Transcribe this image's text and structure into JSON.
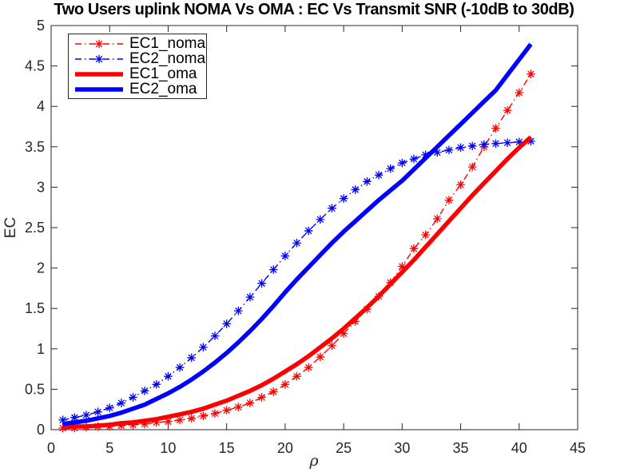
{
  "figure": {
    "background": "#ffffff",
    "axis_color": "#262626",
    "title_color": "#000000"
  },
  "chart_data": {
    "type": "line",
    "title": "Two Users uplink NOMA Vs OMA : EC Vs Transmit SNR (-10dB to 30dB)",
    "xlabel": "ρ",
    "ylabel": "EC",
    "xlim": [
      0,
      45
    ],
    "ylim": [
      0,
      5
    ],
    "xticks": [
      0,
      5,
      10,
      15,
      20,
      25,
      30,
      35,
      40,
      45
    ],
    "yticks": [
      0,
      0.5,
      1,
      1.5,
      2,
      2.5,
      3,
      3.5,
      4,
      4.5,
      5
    ],
    "grid": false,
    "legend_position": "top-left",
    "x": [
      1,
      2,
      3,
      4,
      5,
      6,
      7,
      8,
      9,
      10,
      11,
      12,
      13,
      14,
      15,
      16,
      17,
      18,
      19,
      20,
      21,
      22,
      23,
      24,
      25,
      26,
      27,
      28,
      29,
      30,
      31,
      32,
      33,
      34,
      35,
      36,
      37,
      38,
      39,
      40,
      41
    ],
    "series": [
      {
        "name": "EC1_noma",
        "color": "#ff0000",
        "style": "dash-dot",
        "marker": "asterisk",
        "values": [
          0.02,
          0.02,
          0.03,
          0.04,
          0.04,
          0.05,
          0.06,
          0.07,
          0.09,
          0.1,
          0.12,
          0.14,
          0.17,
          0.2,
          0.24,
          0.28,
          0.33,
          0.4,
          0.47,
          0.56,
          0.66,
          0.77,
          0.9,
          1.04,
          1.19,
          1.34,
          1.49,
          1.65,
          1.82,
          2.02,
          2.24,
          2.41,
          2.61,
          2.84,
          3.03,
          3.25,
          3.5,
          3.73,
          3.95,
          4.17,
          4.4
        ]
      },
      {
        "name": "EC2_noma",
        "color": "#0000ff",
        "style": "dash-dot",
        "marker": "asterisk",
        "values": [
          0.12,
          0.15,
          0.18,
          0.22,
          0.27,
          0.33,
          0.4,
          0.48,
          0.56,
          0.66,
          0.77,
          0.89,
          1.02,
          1.16,
          1.31,
          1.47,
          1.64,
          1.81,
          1.98,
          2.15,
          2.31,
          2.46,
          2.6,
          2.74,
          2.86,
          2.97,
          3.07,
          3.15,
          3.23,
          3.3,
          3.35,
          3.4,
          3.43,
          3.46,
          3.49,
          3.51,
          3.53,
          3.54,
          3.55,
          3.56,
          3.57
        ]
      },
      {
        "name": "EC1_oma",
        "color": "#ff0000",
        "style": "solid-thick",
        "marker": "none",
        "values": [
          0.03,
          0.04,
          0.04,
          0.05,
          0.06,
          0.08,
          0.09,
          0.11,
          0.13,
          0.16,
          0.19,
          0.22,
          0.26,
          0.31,
          0.36,
          0.42,
          0.48,
          0.55,
          0.63,
          0.72,
          0.81,
          0.91,
          1.02,
          1.13,
          1.25,
          1.38,
          1.51,
          1.65,
          1.8,
          1.95,
          2.1,
          2.26,
          2.42,
          2.58,
          2.74,
          2.9,
          3.05,
          3.2,
          3.35,
          3.49,
          3.62
        ]
      },
      {
        "name": "EC2_oma",
        "color": "#0000ff",
        "style": "solid-thick",
        "marker": "none",
        "values": [
          0.07,
          0.09,
          0.11,
          0.14,
          0.17,
          0.21,
          0.26,
          0.31,
          0.38,
          0.45,
          0.53,
          0.62,
          0.72,
          0.83,
          0.95,
          1.08,
          1.22,
          1.37,
          1.53,
          1.7,
          1.86,
          2.01,
          2.16,
          2.31,
          2.45,
          2.58,
          2.71,
          2.84,
          2.96,
          3.08,
          3.22,
          3.36,
          3.5,
          3.64,
          3.78,
          3.92,
          4.06,
          4.2,
          4.39,
          4.58,
          4.77
        ]
      }
    ]
  }
}
